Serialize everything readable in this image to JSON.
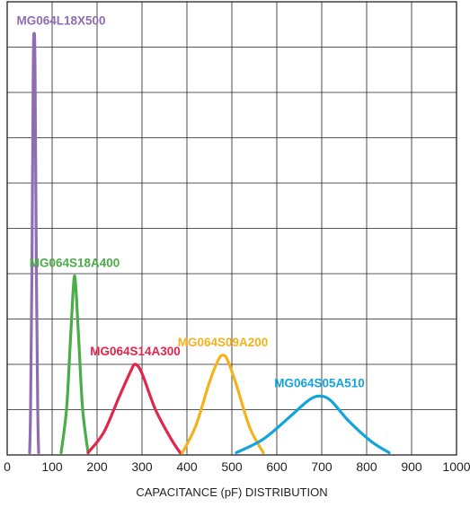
{
  "chart_data": {
    "type": "line",
    "title": "",
    "xlabel": "CAPACITANCE (pF) DISTRIBUTION",
    "ylabel": "",
    "xlim": [
      0,
      1000
    ],
    "x_ticks": [
      "0",
      "100",
      "200",
      "300",
      "400",
      "500",
      "600",
      "700",
      "800",
      "900",
      "1000"
    ],
    "ylim": [
      0,
      10
    ],
    "grid": true,
    "legend": "none",
    "series": [
      {
        "name": "MG064L18X500",
        "color": "#8e6db3",
        "points": [
          [
            50,
            0.05
          ],
          [
            52,
            1.0
          ],
          [
            55,
            4.0
          ],
          [
            58,
            8.5
          ],
          [
            60,
            9.3
          ],
          [
            62,
            8.5
          ],
          [
            65,
            4.0
          ],
          [
            68,
            1.0
          ],
          [
            70,
            0.05
          ]
        ]
      },
      {
        "name": "MG064S18A400",
        "color": "#4aad48",
        "points": [
          [
            120,
            0.05
          ],
          [
            132,
            1.0
          ],
          [
            140,
            2.4
          ],
          [
            146,
            3.5
          ],
          [
            150,
            3.95
          ],
          [
            154,
            3.5
          ],
          [
            160,
            2.4
          ],
          [
            168,
            1.0
          ],
          [
            180,
            0.05
          ]
        ]
      },
      {
        "name": "MG064S14A300",
        "color": "#e0264c",
        "points": [
          [
            180,
            0.05
          ],
          [
            215,
            0.5
          ],
          [
            250,
            1.3
          ],
          [
            275,
            1.85
          ],
          [
            285,
            2.0
          ],
          [
            300,
            1.8
          ],
          [
            330,
            1.0
          ],
          [
            365,
            0.35
          ],
          [
            385,
            0.05
          ]
        ]
      },
      {
        "name": "MG064S09A200",
        "color": "#f4b21c",
        "points": [
          [
            390,
            0.05
          ],
          [
            420,
            0.65
          ],
          [
            450,
            1.6
          ],
          [
            470,
            2.1
          ],
          [
            480,
            2.2
          ],
          [
            490,
            2.1
          ],
          [
            510,
            1.55
          ],
          [
            540,
            0.6
          ],
          [
            570,
            0.05
          ]
        ]
      },
      {
        "name": "MG064S05A510",
        "color": "#12a4db",
        "points": [
          [
            510,
            0.05
          ],
          [
            570,
            0.35
          ],
          [
            630,
            0.85
          ],
          [
            670,
            1.2
          ],
          [
            695,
            1.3
          ],
          [
            720,
            1.2
          ],
          [
            760,
            0.75
          ],
          [
            810,
            0.3
          ],
          [
            850,
            0.05
          ]
        ]
      }
    ]
  }
}
